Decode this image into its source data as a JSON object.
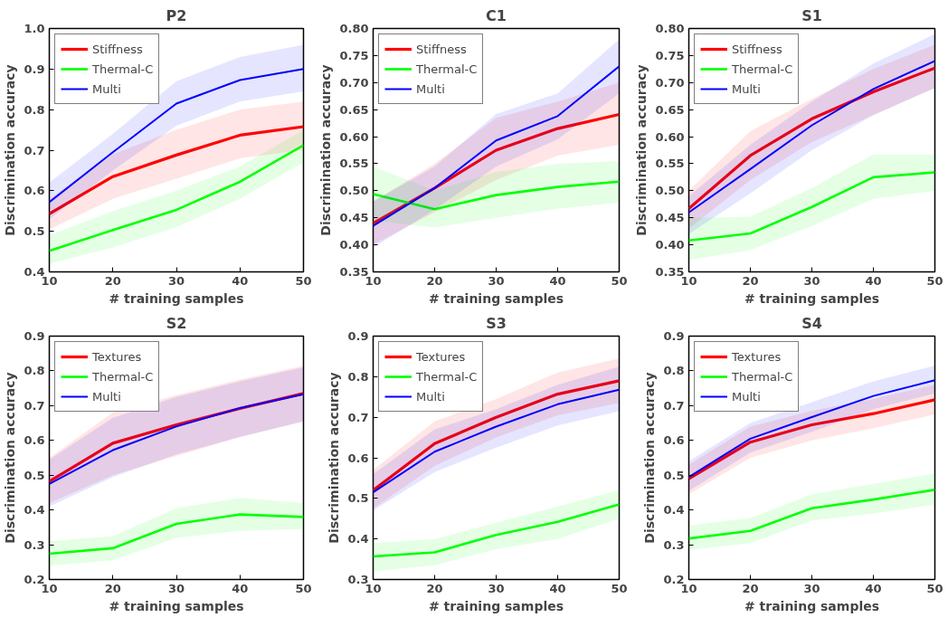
{
  "chart_data": [
    {
      "type": "line",
      "title": "P2",
      "xlabel": "# training samples",
      "ylabel": "Discrimination accuracy",
      "x": [
        10,
        20,
        30,
        40,
        50
      ],
      "xlim": [
        10,
        50
      ],
      "xticks": [
        10,
        20,
        30,
        40,
        50
      ],
      "ylim": [
        0.4,
        1.0
      ],
      "yticks": [
        0.4,
        0.5,
        0.6,
        0.7,
        0.8,
        0.9,
        {
          "value": 1.0,
          "label": "1.0"
        }
      ],
      "grid": false,
      "legend": "top left",
      "line_style": "solid",
      "marker": "none",
      "series": [
        {
          "name": "Stiffness",
          "color": "#ff0000",
          "values": [
            0.543,
            0.635,
            0.688,
            0.737,
            0.758
          ],
          "lower": [
            0.505,
            0.58,
            0.63,
            0.68,
            0.7
          ],
          "upper": [
            0.58,
            0.69,
            0.75,
            0.8,
            0.82
          ]
        },
        {
          "name": "Thermal-C",
          "color": "#00ff00",
          "values": [
            0.452,
            0.503,
            0.553,
            0.622,
            0.712
          ],
          "lower": [
            0.42,
            0.46,
            0.51,
            0.58,
            0.67
          ],
          "upper": [
            0.49,
            0.55,
            0.6,
            0.66,
            0.75
          ]
        },
        {
          "name": "Multi",
          "color": "#0000ff",
          "values": [
            0.572,
            0.695,
            0.815,
            0.873,
            0.9
          ],
          "lower": [
            0.53,
            0.65,
            0.76,
            0.82,
            0.845
          ],
          "upper": [
            0.62,
            0.74,
            0.87,
            0.93,
            0.96
          ]
        }
      ]
    },
    {
      "type": "line",
      "title": "C1",
      "xlabel": "# training samples",
      "ylabel": "Discrimination accuracy",
      "x": [
        10,
        20,
        30,
        40,
        50
      ],
      "xlim": [
        10,
        50
      ],
      "xticks": [
        10,
        20,
        30,
        40,
        50
      ],
      "ylim": [
        0.35,
        0.8
      ],
      "yticks": [
        0.35,
        {
          "value": 0.4,
          "label": "0.40"
        },
        0.45,
        {
          "value": 0.5,
          "label": "0.50"
        },
        0.55,
        {
          "value": 0.6,
          "label": "0.60"
        },
        0.65,
        {
          "value": 0.7,
          "label": "0.70"
        },
        0.75,
        {
          "value": 0.8,
          "label": "0.80"
        }
      ],
      "grid": false,
      "legend": "top left",
      "line_style": "solid",
      "marker": "none",
      "series": [
        {
          "name": "Stiffness",
          "color": "#ff0000",
          "values": [
            0.44,
            0.505,
            0.575,
            0.615,
            0.641
          ],
          "lower": [
            0.4,
            0.46,
            0.52,
            0.565,
            0.585
          ],
          "upper": [
            0.48,
            0.55,
            0.635,
            0.665,
            0.7
          ]
        },
        {
          "name": "Thermal-C",
          "color": "#00ff00",
          "values": [
            0.494,
            0.466,
            0.492,
            0.507,
            0.517
          ],
          "lower": [
            0.445,
            0.432,
            0.45,
            0.467,
            0.478
          ],
          "upper": [
            0.545,
            0.5,
            0.535,
            0.55,
            0.555
          ]
        },
        {
          "name": "Multi",
          "color": "#0000ff",
          "values": [
            0.435,
            0.505,
            0.593,
            0.638,
            0.73
          ],
          "lower": [
            0.395,
            0.465,
            0.545,
            0.595,
            0.68
          ],
          "upper": [
            0.48,
            0.545,
            0.642,
            0.68,
            0.78
          ]
        }
      ]
    },
    {
      "type": "line",
      "title": "S1",
      "xlabel": "# training samples",
      "ylabel": "Discrimination accuracy",
      "x": [
        10,
        20,
        30,
        40,
        50
      ],
      "xlim": [
        10,
        50
      ],
      "xticks": [
        10,
        20,
        30,
        40,
        50
      ],
      "ylim": [
        0.35,
        0.8
      ],
      "yticks": [
        0.35,
        {
          "value": 0.4,
          "label": "0.40"
        },
        0.45,
        {
          "value": 0.5,
          "label": "0.50"
        },
        0.55,
        {
          "value": 0.6,
          "label": "0.60"
        },
        0.65,
        {
          "value": 0.7,
          "label": "0.70"
        },
        0.75,
        {
          "value": 0.8,
          "label": "0.80"
        }
      ],
      "grid": false,
      "legend": "top left",
      "line_style": "solid",
      "marker": "none",
      "series": [
        {
          "name": "Stiffness",
          "color": "#ff0000",
          "values": [
            0.467,
            0.565,
            0.633,
            0.683,
            0.727
          ],
          "lower": [
            0.43,
            0.52,
            0.59,
            0.64,
            0.69
          ],
          "upper": [
            0.5,
            0.61,
            0.67,
            0.725,
            0.77
          ]
        },
        {
          "name": "Thermal-C",
          "color": "#00ff00",
          "values": [
            0.408,
            0.421,
            0.47,
            0.525,
            0.534
          ],
          "lower": [
            0.372,
            0.39,
            0.435,
            0.485,
            0.5
          ],
          "upper": [
            0.45,
            0.452,
            0.505,
            0.567,
            0.567
          ]
        },
        {
          "name": "Multi",
          "color": "#0000ff",
          "values": [
            0.46,
            0.54,
            0.621,
            0.688,
            0.74
          ],
          "lower": [
            0.42,
            0.495,
            0.575,
            0.64,
            0.69
          ],
          "upper": [
            0.49,
            0.585,
            0.665,
            0.735,
            0.79
          ]
        }
      ]
    },
    {
      "type": "line",
      "title": "S2",
      "xlabel": "# training samples",
      "ylabel": "Discrimination accuracy",
      "x": [
        10,
        20,
        30,
        40,
        50
      ],
      "xlim": [
        10,
        50
      ],
      "xticks": [
        10,
        20,
        30,
        40,
        50
      ],
      "ylim": [
        0.2,
        0.9
      ],
      "yticks": [
        0.2,
        0.3,
        0.4,
        0.5,
        0.6,
        0.7,
        0.8,
        0.9
      ],
      "grid": false,
      "legend": "top left",
      "line_style": "solid",
      "marker": "none",
      "series": [
        {
          "name": "Textures",
          "color": "#ff0000",
          "values": [
            0.482,
            0.592,
            0.645,
            0.692,
            0.735
          ],
          "lower": [
            0.42,
            0.5,
            0.555,
            0.61,
            0.655
          ],
          "upper": [
            0.55,
            0.68,
            0.73,
            0.775,
            0.815
          ]
        },
        {
          "name": "Thermal-C",
          "color": "#00ff00",
          "values": [
            0.274,
            0.29,
            0.36,
            0.387,
            0.38
          ],
          "lower": [
            0.24,
            0.255,
            0.32,
            0.34,
            0.345
          ],
          "upper": [
            0.31,
            0.325,
            0.405,
            0.435,
            0.42
          ]
        },
        {
          "name": "Multi",
          "color": "#0000ff",
          "values": [
            0.475,
            0.572,
            0.64,
            0.693,
            0.733
          ],
          "lower": [
            0.41,
            0.495,
            0.56,
            0.61,
            0.655
          ],
          "upper": [
            0.545,
            0.665,
            0.725,
            0.77,
            0.81
          ]
        }
      ]
    },
    {
      "type": "line",
      "title": "S3",
      "xlabel": "# training samples",
      "ylabel": "Discrimination accuracy",
      "x": [
        10,
        20,
        30,
        40,
        50
      ],
      "xlim": [
        10,
        50
      ],
      "xticks": [
        10,
        20,
        30,
        40,
        50
      ],
      "ylim": [
        0.3,
        0.9
      ],
      "yticks": [
        0.3,
        0.4,
        0.5,
        0.6,
        0.7,
        0.8,
        0.9
      ],
      "grid": false,
      "legend": "top left",
      "line_style": "solid",
      "marker": "none",
      "series": [
        {
          "name": "Textures",
          "color": "#ff0000",
          "values": [
            0.52,
            0.635,
            0.7,
            0.757,
            0.79
          ],
          "lower": [
            0.475,
            0.58,
            0.65,
            0.705,
            0.735
          ],
          "upper": [
            0.57,
            0.69,
            0.745,
            0.81,
            0.845
          ]
        },
        {
          "name": "Thermal-C",
          "color": "#00ff00",
          "values": [
            0.357,
            0.367,
            0.41,
            0.442,
            0.485
          ],
          "lower": [
            0.32,
            0.335,
            0.375,
            0.4,
            0.45
          ],
          "upper": [
            0.39,
            0.4,
            0.44,
            0.48,
            0.52
          ]
        },
        {
          "name": "Multi",
          "color": "#0000ff",
          "values": [
            0.515,
            0.615,
            0.677,
            0.732,
            0.768
          ],
          "lower": [
            0.47,
            0.565,
            0.625,
            0.68,
            0.715
          ],
          "upper": [
            0.56,
            0.67,
            0.72,
            0.78,
            0.825
          ]
        }
      ]
    },
    {
      "type": "line",
      "title": "S4",
      "xlabel": "# training samples",
      "ylabel": "Discrimination accuracy",
      "x": [
        10,
        20,
        30,
        40,
        50
      ],
      "xlim": [
        10,
        50
      ],
      "xticks": [
        10,
        20,
        30,
        40,
        50
      ],
      "ylim": [
        0.2,
        0.9
      ],
      "yticks": [
        0.2,
        0.3,
        0.4,
        0.5,
        0.6,
        0.7,
        0.8,
        0.9
      ],
      "grid": false,
      "legend": "top left",
      "line_style": "solid",
      "marker": "none",
      "series": [
        {
          "name": "Textures",
          "color": "#ff0000",
          "values": [
            0.49,
            0.595,
            0.645,
            0.677,
            0.717
          ],
          "lower": [
            0.445,
            0.55,
            0.6,
            0.635,
            0.675
          ],
          "upper": [
            0.53,
            0.64,
            0.685,
            0.72,
            0.76
          ]
        },
        {
          "name": "Thermal-C",
          "color": "#00ff00",
          "values": [
            0.318,
            0.34,
            0.405,
            0.43,
            0.458
          ],
          "lower": [
            0.285,
            0.305,
            0.37,
            0.39,
            0.415
          ],
          "upper": [
            0.355,
            0.377,
            0.445,
            0.475,
            0.505
          ]
        },
        {
          "name": "Multi",
          "color": "#0000ff",
          "values": [
            0.495,
            0.605,
            0.667,
            0.728,
            0.773
          ],
          "lower": [
            0.455,
            0.565,
            0.625,
            0.69,
            0.735
          ],
          "upper": [
            0.54,
            0.65,
            0.71,
            0.77,
            0.815
          ]
        }
      ]
    }
  ]
}
